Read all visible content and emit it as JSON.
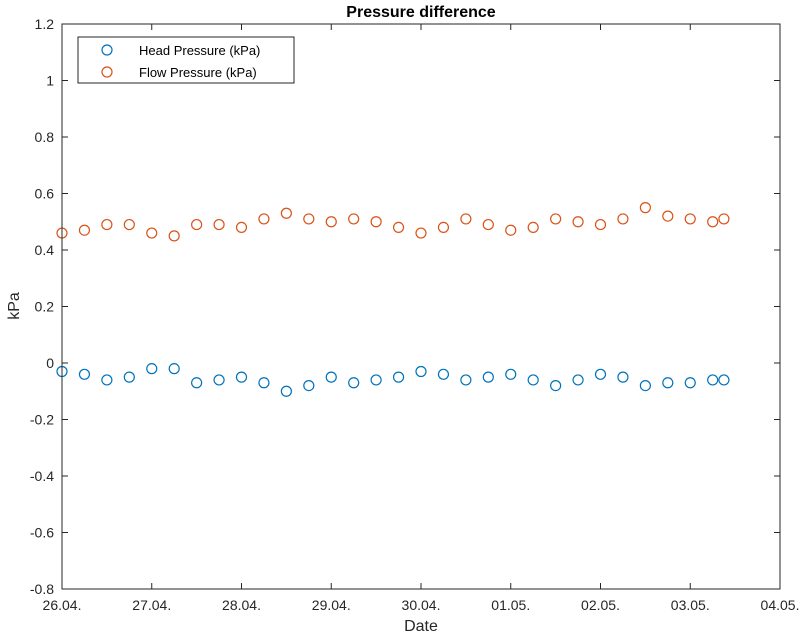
{
  "chart_data": {
    "type": "scatter",
    "title": "Pressure difference",
    "xlabel": "Date",
    "ylabel": "kPa",
    "x_tick_labels": [
      "26.04.",
      "27.04.",
      "28.04.",
      "29.04.",
      "30.04.",
      "01.05.",
      "02.05.",
      "03.05.",
      "04.05."
    ],
    "xlim": [
      "26.04.",
      "04.05."
    ],
    "ylim": [
      -0.8,
      1.2
    ],
    "y_ticks": [
      -0.8,
      -0.6,
      -0.4,
      -0.2,
      0,
      0.2,
      0.4,
      0.6,
      0.8,
      1,
      1.2
    ],
    "y_tick_labels": [
      "-0.8",
      "-0.6",
      "-0.4",
      "-0.2",
      "0",
      "0.2",
      "0.4",
      "0.6",
      "0.8",
      "1",
      "1.2"
    ],
    "grid": false,
    "legend_position": "top-left",
    "marker": "open-circle",
    "series": [
      {
        "name": "Head Pressure (kPa)",
        "color": "#0072BD",
        "x": [
          "26.04. 00:00",
          "26.04. 06:00",
          "26.04. 12:00",
          "26.04. 18:00",
          "27.04. 00:00",
          "27.04. 06:00",
          "27.04. 12:00",
          "27.04. 18:00",
          "28.04. 00:00",
          "28.04. 06:00",
          "28.04. 12:00",
          "28.04. 18:00",
          "29.04. 00:00",
          "29.04. 06:00",
          "29.04. 12:00",
          "29.04. 18:00",
          "30.04. 00:00",
          "30.04. 06:00",
          "30.04. 12:00",
          "30.04. 18:00",
          "01.05. 00:00",
          "01.05. 06:00",
          "01.05. 12:00",
          "01.05. 18:00",
          "02.05. 00:00",
          "02.05. 06:00",
          "02.05. 12:00",
          "02.05. 18:00",
          "03.05. 00:00",
          "03.05. 06:00",
          "03.05. 09:00"
        ],
        "values": [
          -0.03,
          -0.04,
          -0.06,
          -0.05,
          -0.02,
          -0.02,
          -0.07,
          -0.06,
          -0.05,
          -0.07,
          -0.1,
          -0.08,
          -0.05,
          -0.07,
          -0.06,
          -0.05,
          -0.03,
          -0.04,
          -0.06,
          -0.05,
          -0.04,
          -0.06,
          -0.08,
          -0.06,
          -0.04,
          -0.05,
          -0.08,
          -0.07,
          -0.07,
          -0.06,
          -0.06
        ]
      },
      {
        "name": "Flow Pressure (kPa)",
        "color": "#D95319",
        "x": [
          "26.04. 00:00",
          "26.04. 06:00",
          "26.04. 12:00",
          "26.04. 18:00",
          "27.04. 00:00",
          "27.04. 06:00",
          "27.04. 12:00",
          "27.04. 18:00",
          "28.04. 00:00",
          "28.04. 06:00",
          "28.04. 12:00",
          "28.04. 18:00",
          "29.04. 00:00",
          "29.04. 06:00",
          "29.04. 12:00",
          "29.04. 18:00",
          "30.04. 00:00",
          "30.04. 06:00",
          "30.04. 12:00",
          "30.04. 18:00",
          "01.05. 00:00",
          "01.05. 06:00",
          "01.05. 12:00",
          "01.05. 18:00",
          "02.05. 00:00",
          "02.05. 06:00",
          "02.05. 12:00",
          "02.05. 18:00",
          "03.05. 00:00",
          "03.05. 06:00",
          "03.05. 09:00"
        ],
        "values": [
          0.46,
          0.47,
          0.49,
          0.49,
          0.46,
          0.45,
          0.49,
          0.49,
          0.48,
          0.51,
          0.53,
          0.51,
          0.5,
          0.51,
          0.5,
          0.48,
          0.46,
          0.48,
          0.51,
          0.49,
          0.47,
          0.48,
          0.51,
          0.5,
          0.49,
          0.51,
          0.55,
          0.52,
          0.51,
          0.5,
          0.51
        ]
      }
    ]
  }
}
